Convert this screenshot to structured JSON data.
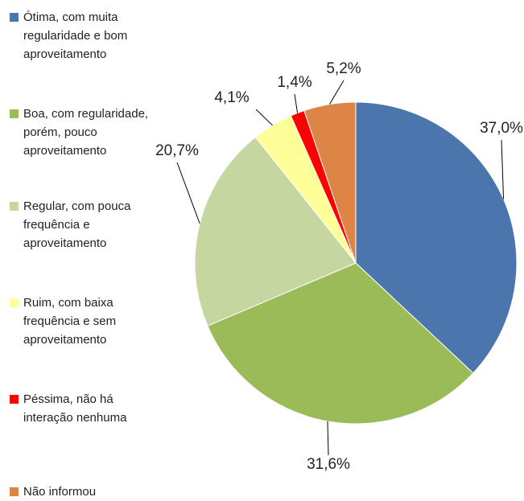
{
  "chart_data": {
    "type": "pie",
    "categories": [
      "Ótima, com muita regularidade e bom aproveitamento",
      "Boa, com regularidade, porém, pouco aproveitamento",
      "Regular, com pouca frequência e aproveitamento",
      "Ruim, com baixa frequência e sem aproveitamento",
      "Péssima, não há interação nenhuma",
      "Não informou"
    ],
    "values": [
      37.0,
      31.6,
      20.7,
      4.1,
      1.4,
      5.2
    ],
    "value_labels": [
      "37,0%",
      "31,6%",
      "20,7%",
      "4,1%",
      "1,4%",
      "5,2%"
    ],
    "colors": [
      "#4a76ad",
      "#9bbb59",
      "#c5d6a1",
      "#ffff99",
      "#ff0000",
      "#dd8447"
    ],
    "legend": "left"
  }
}
